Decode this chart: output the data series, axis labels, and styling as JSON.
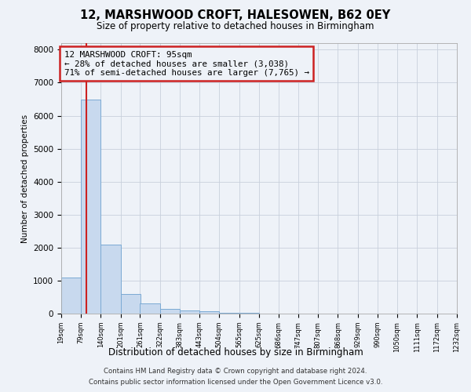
{
  "title": "12, MARSHWOOD CROFT, HALESOWEN, B62 0EY",
  "subtitle": "Size of property relative to detached houses in Birmingham",
  "xlabel": "Distribution of detached houses by size in Birmingham",
  "ylabel": "Number of detached properties",
  "footer_line1": "Contains HM Land Registry data © Crown copyright and database right 2024.",
  "footer_line2": "Contains public sector information licensed under the Open Government Licence v3.0.",
  "annotation_line1": "12 MARSHWOOD CROFT: 95sqm",
  "annotation_line2": "← 28% of detached houses are smaller (3,038)",
  "annotation_line3": "71% of semi-detached houses are larger (7,765) →",
  "property_size": 95,
  "bar_left_edges": [
    19,
    79,
    140,
    201,
    261,
    322,
    383,
    443,
    504,
    565,
    625,
    686,
    747,
    807,
    868,
    929,
    990,
    1050,
    1111,
    1172
  ],
  "bar_heights": [
    1100,
    6500,
    2100,
    600,
    300,
    150,
    90,
    60,
    30,
    20,
    10,
    5,
    3,
    2,
    1,
    1,
    0,
    0,
    0,
    0
  ],
  "bin_width": 61,
  "bar_color": "#c8d9ee",
  "bar_edge_color": "#7baad4",
  "red_line_color": "#cc2222",
  "annotation_box_color": "#cc2222",
  "grid_color": "#c8d0dc",
  "ylim": [
    0,
    8200
  ],
  "yticks": [
    0,
    1000,
    2000,
    3000,
    4000,
    5000,
    6000,
    7000,
    8000
  ],
  "tick_labels": [
    "19sqm",
    "79sqm",
    "140sqm",
    "201sqm",
    "261sqm",
    "322sqm",
    "383sqm",
    "443sqm",
    "504sqm",
    "565sqm",
    "625sqm",
    "686sqm",
    "747sqm",
    "807sqm",
    "868sqm",
    "929sqm",
    "990sqm",
    "1050sqm",
    "1111sqm",
    "1172sqm",
    "1232sqm"
  ],
  "bg_color": "#eef2f8"
}
